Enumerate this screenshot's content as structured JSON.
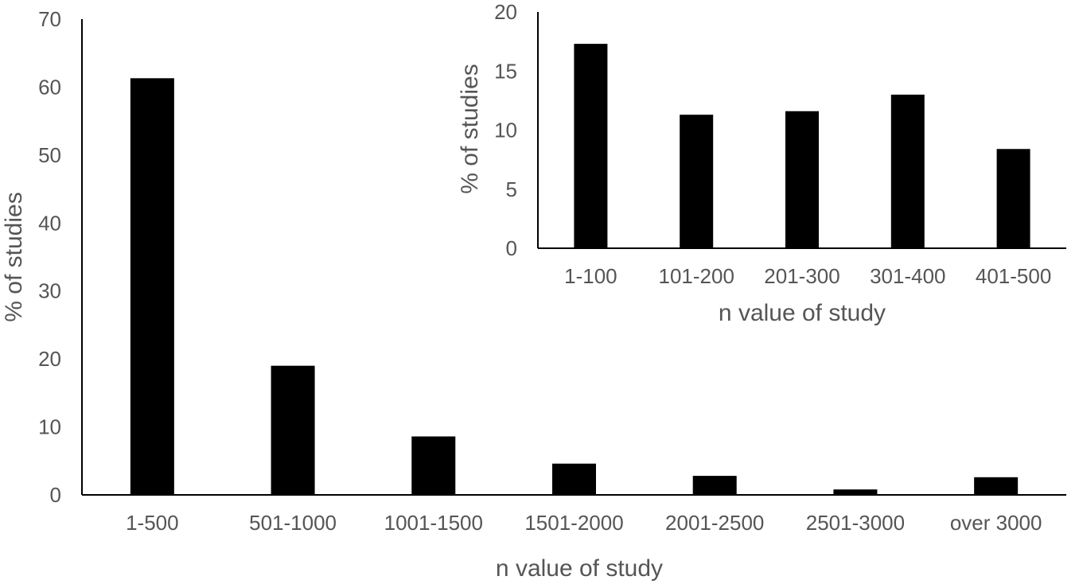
{
  "chart_data": [
    {
      "type": "bar",
      "title": "",
      "xlabel": "n value of study",
      "ylabel": "% of studies",
      "ylim": [
        0,
        70
      ],
      "yticks": [
        0,
        10,
        20,
        30,
        40,
        50,
        60,
        70
      ],
      "categories": [
        "1-500",
        "501-1000",
        "1001-1500",
        "1501-2000",
        "2001-2500",
        "2501-3000",
        "over 3000"
      ],
      "values": [
        61.3,
        19.0,
        8.6,
        4.6,
        2.8,
        0.8,
        2.6
      ],
      "bar_color": "#000000",
      "grid": false,
      "legend": "none"
    },
    {
      "type": "bar",
      "title": "",
      "xlabel": "n value of study",
      "ylabel": "% of studies",
      "ylim": [
        0,
        20
      ],
      "yticks": [
        0,
        5,
        10,
        15,
        20
      ],
      "categories": [
        "1-100",
        "101-200",
        "201-300",
        "301-400",
        "401-500"
      ],
      "values": [
        17.3,
        11.3,
        11.6,
        13.0,
        8.4
      ],
      "bar_color": "#000000",
      "grid": false,
      "legend": "none"
    }
  ]
}
